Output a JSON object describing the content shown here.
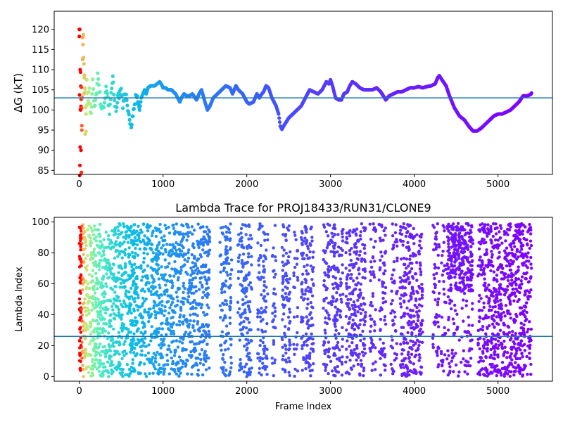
{
  "chart_data": [
    {
      "type": "scatter",
      "title": "",
      "xlabel": "",
      "ylabel": "ΔG (kT)",
      "xlim": [
        -300,
        5650
      ],
      "ylim": [
        84,
        124.5
      ],
      "xticks": [
        0,
        1000,
        2000,
        3000,
        4000,
        5000
      ],
      "yticks": [
        85,
        90,
        95,
        100,
        105,
        110,
        115,
        120
      ],
      "grid": false,
      "colormap": "rainbow (late frames violet, early frames red)",
      "reference_line": {
        "y": 103,
        "color": "#1f77b4"
      },
      "series": [
        {
          "points_x": [
            0,
            5,
            10,
            15,
            20,
            25,
            30,
            40,
            50,
            60,
            70,
            80,
            90,
            100,
            120,
            140,
            160,
            180,
            200,
            220,
            240,
            260,
            280,
            300,
            320,
            340,
            360,
            380,
            400,
            420,
            440,
            460,
            480,
            500,
            520,
            540,
            560,
            580,
            600,
            620,
            640,
            660,
            680,
            700,
            720,
            740,
            760,
            780,
            800,
            820,
            850,
            880,
            900,
            930,
            960,
            990,
            1000,
            1030,
            1060,
            1100,
            1150,
            1200,
            1220,
            1250,
            1280,
            1320,
            1350,
            1400,
            1430,
            1460,
            1500,
            1530,
            1560,
            1600,
            1650,
            1700,
            1750,
            1800,
            1830,
            1870,
            1900,
            1950,
            2000,
            2030,
            2080,
            2120,
            2150,
            2180,
            2200,
            2230,
            2260,
            2300,
            2350,
            2380,
            2400,
            2420,
            2440,
            2470,
            2500,
            2550,
            2600,
            2650,
            2700,
            2750,
            2800,
            2850,
            2900,
            2950,
            2980,
            3000,
            3030,
            3060,
            3100,
            3130,
            3160,
            3200,
            3230,
            3260,
            3300,
            3350,
            3400,
            3450,
            3500,
            3550,
            3600,
            3630,
            3660,
            3700,
            3750,
            3800,
            3850,
            3900,
            3950,
            4000,
            4050,
            4100,
            4150,
            4200,
            4250,
            4280,
            4300,
            4330,
            4380,
            4420,
            4480,
            4540,
            4600,
            4650,
            4700,
            4750,
            4800,
            4850,
            4900,
            4950,
            5000,
            5050,
            5100,
            5150,
            5200,
            5250,
            5300,
            5350,
            5400
          ],
          "points_y": [
            120,
            84.5,
            90,
            110,
            100,
            105,
            95,
            113,
            118,
            108,
            103,
            96,
            106,
            101,
            104,
            98,
            108,
            100,
            103,
            109,
            105,
            101,
            100,
            102,
            106,
            103,
            99,
            104,
            108,
            102,
            100,
            103,
            104,
            106,
            101,
            104,
            103,
            99,
            98,
            96.5,
            99,
            101,
            104,
            102,
            100,
            103,
            104,
            105,
            104,
            105.5,
            106,
            106,
            106,
            106.5,
            107,
            106,
            105.5,
            105.5,
            105,
            105,
            104,
            102,
            103,
            104,
            103.5,
            103.5,
            104,
            102.5,
            104,
            105,
            102,
            100,
            101,
            103,
            104,
            105,
            106,
            105.5,
            104,
            106,
            105,
            104,
            102,
            101.5,
            102,
            104,
            103,
            104,
            104.5,
            106,
            105.5,
            103,
            101,
            99,
            96,
            95.2,
            96,
            97,
            98,
            99,
            100,
            101,
            103,
            105,
            104.5,
            104,
            105,
            107,
            106.5,
            107.5,
            105.5,
            103,
            102.5,
            102.5,
            104,
            104.5,
            106,
            107,
            106.5,
            105.5,
            105,
            105,
            105,
            105.5,
            104.5,
            103.5,
            102.5,
            103.5,
            104,
            104.5,
            104.5,
            105,
            105.5,
            105.5,
            105.8,
            105.5,
            105.8,
            106,
            106.5,
            108,
            108.5,
            107.5,
            106,
            103.5,
            100.5,
            98.5,
            97.5,
            96,
            94.8,
            94.8,
            95.5,
            96.5,
            97.5,
            98.5,
            99,
            99,
            99.5,
            100,
            101,
            102,
            103.5,
            103.5,
            104,
            104.2
          ]
        }
      ]
    },
    {
      "type": "scatter",
      "title": "Lambda Trace for PROJ18433/RUN31/CLONE9",
      "xlabel": "Frame Index",
      "ylabel": "Lambda Index",
      "xlim": [
        -300,
        5650
      ],
      "ylim": [
        -3,
        103
      ],
      "xticks": [
        0,
        1000,
        2000,
        3000,
        4000,
        5000
      ],
      "yticks": [
        0,
        20,
        40,
        60,
        80,
        100
      ],
      "grid": false,
      "colormap": "rainbow (late frames violet, early frames red)",
      "reference_line": {
        "y": 26,
        "color": "#1f77b4"
      },
      "frame_range": [
        0,
        5400
      ],
      "lambda_range": [
        0,
        99
      ],
      "bands": [
        {
          "x": [
            0,
            700
          ],
          "density": 1.0
        },
        {
          "x": [
            700,
            1470
          ],
          "density": 0.8
        },
        {
          "x": [
            1470,
            1560
          ],
          "density": 0.9
        },
        {
          "x": [
            1680,
            1820
          ],
          "density": 0.75
        },
        {
          "x": [
            1890,
            2060
          ],
          "density": 0.75
        },
        {
          "x": [
            2130,
            2250
          ],
          "density": 0.7
        },
        {
          "x": [
            2300,
            2350
          ],
          "density": 0.55
        },
        {
          "x": [
            2420,
            2520
          ],
          "density": 0.8
        },
        {
          "x": [
            2560,
            2610
          ],
          "density": 0.5
        },
        {
          "x": [
            2650,
            2800
          ],
          "density": 0.8
        },
        {
          "x": [
            2910,
            2990
          ],
          "density": 0.7
        },
        {
          "x": [
            3000,
            3150
          ],
          "density": 0.75
        },
        {
          "x": [
            3180,
            3420
          ],
          "density": 0.8
        },
        {
          "x": [
            3470,
            3540
          ],
          "density": 0.6
        },
        {
          "x": [
            3580,
            3660
          ],
          "density": 0.7
        },
        {
          "x": [
            3720,
            3800
          ],
          "density": 0.55
        },
        {
          "x": [
            3830,
            4100
          ],
          "density": 0.85
        },
        {
          "x": [
            4220,
            4300
          ],
          "density": 0.65
        },
        {
          "x": [
            4320,
            4380
          ],
          "density": 0.45
        },
        {
          "x": [
            4390,
            4700
          ],
          "density": 1.0
        },
        {
          "x": [
            4760,
            5400
          ],
          "density": 0.95
        }
      ]
    }
  ]
}
